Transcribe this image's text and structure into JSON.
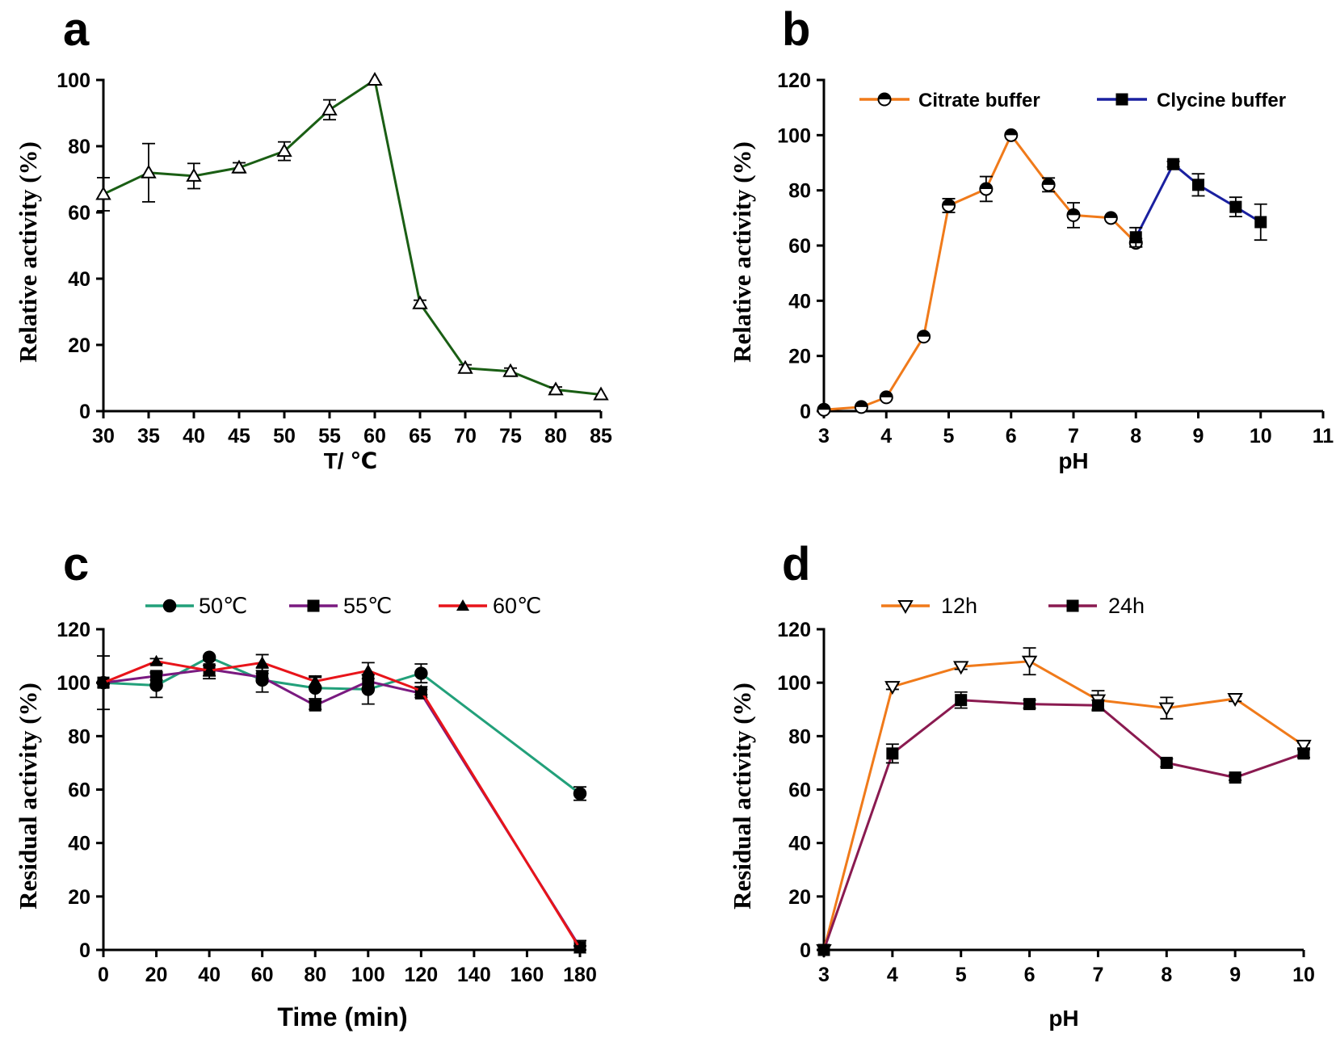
{
  "chart_data": [
    {
      "id": "a",
      "type": "line",
      "panel_label": "a",
      "xlabel": "T/ ℃",
      "ylabel": "Relative activity (%)",
      "xlim": [
        30,
        85
      ],
      "ylim": [
        0,
        100
      ],
      "xticks": [
        30,
        35,
        40,
        45,
        50,
        55,
        60,
        65,
        70,
        75,
        80,
        85
      ],
      "yticks": [
        0,
        20,
        40,
        60,
        80,
        100
      ],
      "legend": [],
      "series": [
        {
          "name": "Relative activity",
          "color": "#1a5e14",
          "marker": "triangle-open",
          "x": [
            30,
            35,
            40,
            45,
            50,
            55,
            60,
            65,
            70,
            75,
            80,
            85
          ],
          "y": [
            65.5,
            72,
            71,
            73.5,
            78.5,
            91,
            100,
            32.5,
            13,
            12,
            6.5,
            5
          ],
          "err": [
            5,
            8.8,
            3.8,
            1.5,
            2.8,
            3,
            0.5,
            1,
            1,
            1,
            0.8,
            0.5
          ]
        }
      ]
    },
    {
      "id": "b",
      "type": "line",
      "panel_label": "b",
      "xlabel": "pH",
      "ylabel": "Relative activity (%)",
      "xlim": [
        3,
        11
      ],
      "ylim": [
        0,
        120
      ],
      "xticks": [
        3,
        4,
        5,
        6,
        7,
        8,
        9,
        10,
        11
      ],
      "yticks": [
        0,
        20,
        40,
        60,
        80,
        100,
        120
      ],
      "legend": [
        "Citrate buffer",
        "Clycine buffer"
      ],
      "series": [
        {
          "name": "Citrate buffer",
          "color": "#f07a1a",
          "marker": "circle-half",
          "x": [
            3,
            3.6,
            4,
            4.6,
            5,
            5.6,
            6,
            6.6,
            7,
            7.6,
            8
          ],
          "y": [
            0.5,
            1.5,
            5,
            27,
            74.5,
            80.5,
            100,
            82,
            71,
            70,
            61
          ],
          "err": [
            0.5,
            0.5,
            0.5,
            0.5,
            2.5,
            4.5,
            0.5,
            2.5,
            4.5,
            0.5,
            1.5
          ]
        },
        {
          "name": "Clycine buffer",
          "color": "#1a20a0",
          "marker": "square",
          "x": [
            8,
            8.6,
            9,
            9.6,
            10
          ],
          "y": [
            63,
            89.5,
            82,
            74,
            68.5
          ],
          "err": [
            3.5,
            1,
            4,
            3.5,
            6.5
          ]
        }
      ]
    },
    {
      "id": "c",
      "type": "line",
      "panel_label": "c",
      "xlabel": "Time (min)",
      "ylabel": "Residual activity (%)",
      "xlim": [
        0,
        180
      ],
      "ylim": [
        0,
        120
      ],
      "xticks": [
        0,
        20,
        40,
        60,
        80,
        100,
        120,
        140,
        160,
        180
      ],
      "yticks": [
        0,
        20,
        40,
        60,
        80,
        100,
        120
      ],
      "legend": [
        "50℃",
        "55℃",
        "60℃"
      ],
      "series": [
        {
          "name": "50℃",
          "color": "#22a07a",
          "marker": "circle",
          "x": [
            0,
            20,
            40,
            60,
            80,
            100,
            120,
            180
          ],
          "y": [
            100,
            99,
            109.5,
            101,
            98,
            97.5,
            103.5,
            58.5
          ],
          "err": [
            10,
            4.5,
            0.5,
            4.5,
            4,
            5.5,
            3.5,
            2.5
          ]
        },
        {
          "name": "55℃",
          "color": "#7a1a80",
          "marker": "square",
          "x": [
            0,
            20,
            40,
            60,
            80,
            100,
            120,
            180
          ],
          "y": [
            100,
            102.5,
            105,
            102,
            91.5,
            100.5,
            96,
            1
          ],
          "err": [
            0.5,
            1.5,
            3.5,
            1.5,
            1.5,
            2.5,
            1.5,
            2.5
          ]
        },
        {
          "name": "60℃",
          "color": "#e8141a",
          "marker": "triangle",
          "x": [
            0,
            20,
            40,
            60,
            80,
            100,
            120,
            180
          ],
          "y": [
            100,
            108,
            104.5,
            107.5,
            100.5,
            104.5,
            97,
            0.5
          ],
          "err": [
            0.5,
            1,
            2,
            3,
            2,
            3,
            1.5,
            1
          ]
        }
      ]
    },
    {
      "id": "d",
      "type": "line",
      "panel_label": "d",
      "xlabel": "pH",
      "ylabel": "Residual activity (%)",
      "xlim": [
        3,
        10
      ],
      "ylim": [
        0,
        120
      ],
      "xticks": [
        3,
        4,
        5,
        6,
        7,
        8,
        9,
        10
      ],
      "yticks": [
        0,
        20,
        40,
        60,
        80,
        100,
        120
      ],
      "legend": [
        "12h",
        "24h"
      ],
      "series": [
        {
          "name": "12h",
          "color": "#f07a1a",
          "marker": "triangle-down-open",
          "x": [
            3,
            4,
            5,
            6,
            7,
            8,
            9,
            10
          ],
          "y": [
            0,
            98.5,
            106,
            108,
            93.5,
            90.5,
            94,
            76.5
          ],
          "err": [
            0,
            1,
            1,
            5,
            3.5,
            4,
            1,
            1
          ]
        },
        {
          "name": "24h",
          "color": "#8a1a50",
          "marker": "square",
          "x": [
            3,
            4,
            5,
            6,
            7,
            8,
            9,
            10
          ],
          "y": [
            0,
            73.5,
            93.5,
            92,
            91.5,
            70,
            64.5,
            73.5
          ],
          "err": [
            0,
            3.5,
            3,
            1.5,
            2,
            1.5,
            1,
            1.5
          ]
        }
      ]
    }
  ]
}
